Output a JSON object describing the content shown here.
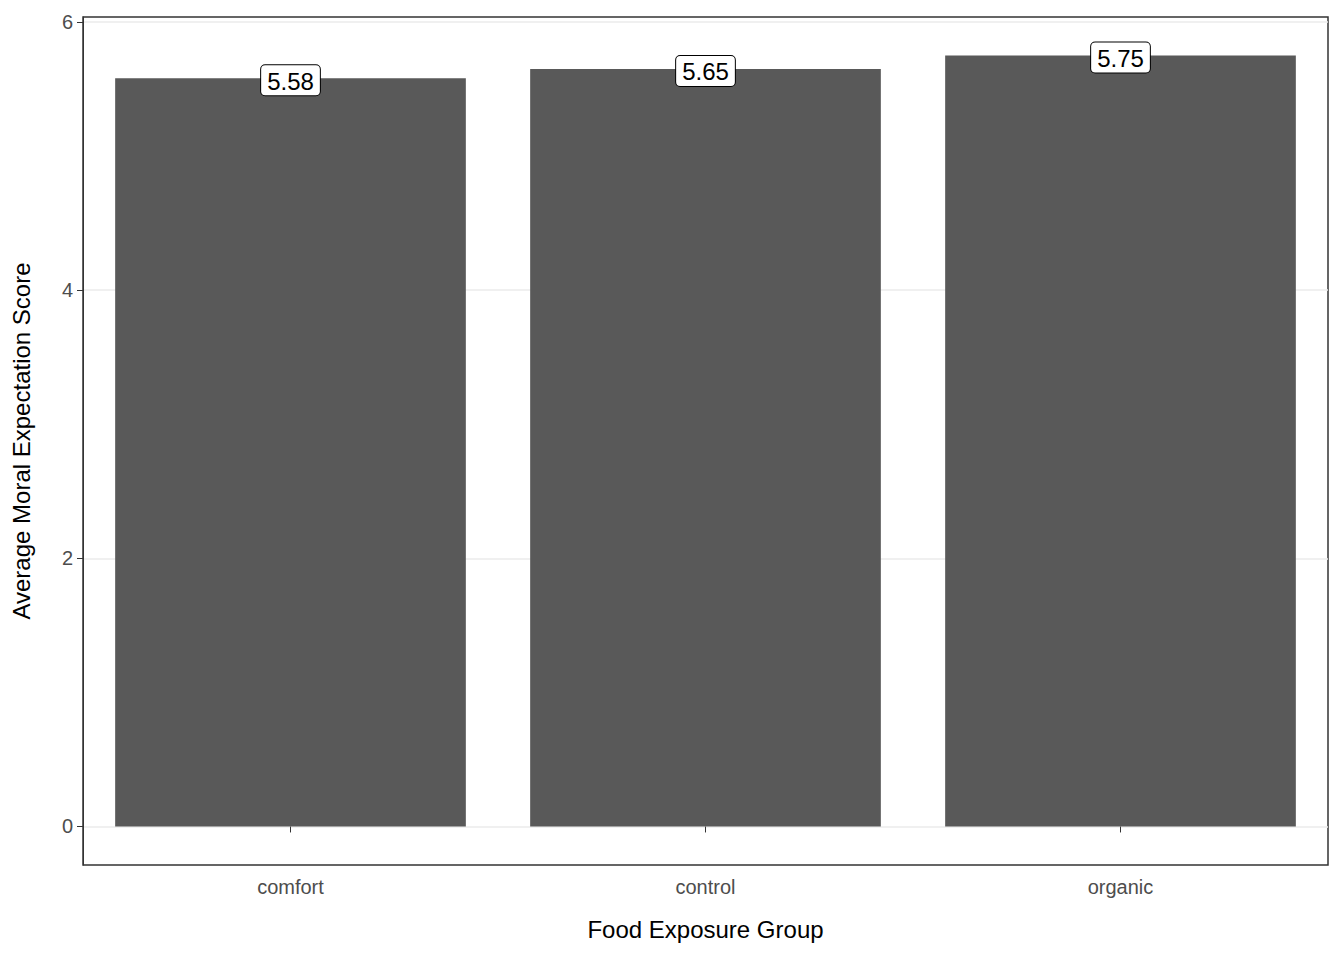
{
  "chart_data": {
    "type": "bar",
    "x_label": "Food Exposure Group",
    "y_label": "Average Moral Expectation Score",
    "categories": [
      "comfort",
      "control",
      "organic"
    ],
    "values": [
      5.58,
      5.65,
      5.75
    ],
    "color": "#595959",
    "ylim": [
      -0.2875,
      6.0375
    ],
    "yticks": [
      0,
      2,
      4,
      6
    ],
    "grid": true,
    "data_labels": true
  }
}
